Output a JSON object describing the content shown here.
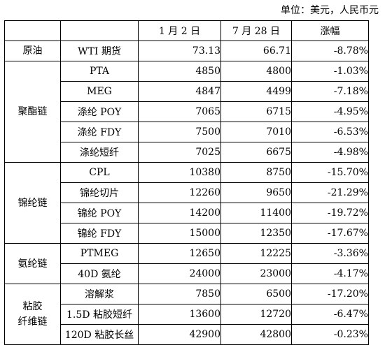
{
  "unit_note": "单位：美元，人民币元",
  "header": {
    "chain": "",
    "product": "",
    "date1": "1 月 2 日",
    "date2": "7 月 28 日",
    "change": "涨幅"
  },
  "groups": [
    {
      "chain": "原油",
      "rows": [
        {
          "product": "WTI 期货",
          "v1": "73.13",
          "v2": "66.71",
          "chg": "-8.78%"
        }
      ]
    },
    {
      "chain": "聚酯链",
      "rows": [
        {
          "product": "PTA",
          "v1": "4850",
          "v2": "4800",
          "chg": "-1.03%"
        },
        {
          "product": "MEG",
          "v1": "4847",
          "v2": "4499",
          "chg": "-7.18%"
        },
        {
          "product": "涤纶 POY",
          "v1": "7065",
          "v2": "6715",
          "chg": "-4.95%"
        },
        {
          "product": "涤纶 FDY",
          "v1": "7500",
          "v2": "7010",
          "chg": "-6.53%"
        },
        {
          "product": "涤纶短纤",
          "v1": "7025",
          "v2": "6675",
          "chg": "-4.98%"
        }
      ]
    },
    {
      "chain": "锦纶链",
      "rows": [
        {
          "product": "CPL",
          "v1": "10380",
          "v2": "8750",
          "chg": "-15.70%"
        },
        {
          "product": "锦纶切片",
          "v1": "12260",
          "v2": "9650",
          "chg": "-21.29%"
        },
        {
          "product": "锦纶 POY",
          "v1": "14200",
          "v2": "11400",
          "chg": "-19.72%"
        },
        {
          "product": "锦纶 FDY",
          "v1": "15000",
          "v2": "12350",
          "chg": "-17.67%"
        }
      ]
    },
    {
      "chain": "氨纶链",
      "rows": [
        {
          "product": "PTMEG",
          "v1": "12650",
          "v2": "12225",
          "chg": "-3.36%"
        },
        {
          "product": "40D 氨纶",
          "v1": "24000",
          "v2": "23000",
          "chg": "-4.17%"
        }
      ]
    },
    {
      "chain": "粘胶\n纤维链",
      "rows": [
        {
          "product": "溶解浆",
          "v1": "7850",
          "v2": "6500",
          "chg": "-17.20%"
        },
        {
          "product": "1.5D 粘胶短纤",
          "v1": "13600",
          "v2": "12720",
          "chg": "-6.47%"
        },
        {
          "product": "120D 粘胶长丝",
          "v1": "42900",
          "v2": "42800",
          "chg": "-0.23%"
        }
      ]
    }
  ]
}
